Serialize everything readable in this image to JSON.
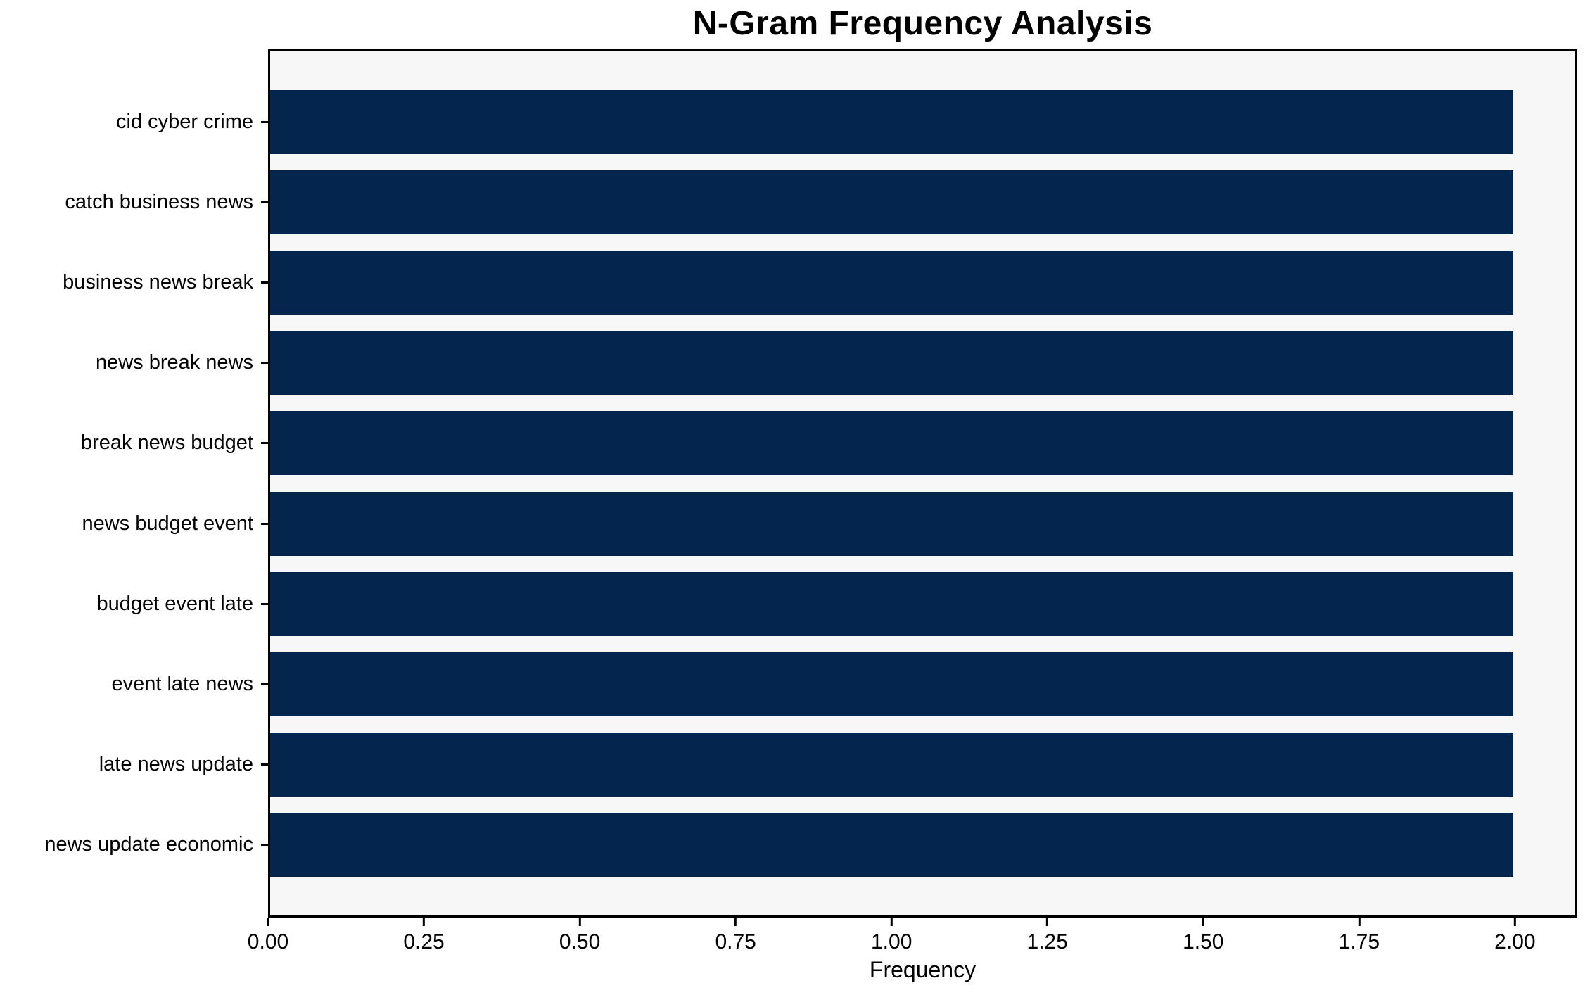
{
  "chart_data": {
    "type": "bar",
    "orientation": "horizontal",
    "title": "N-Gram Frequency Analysis",
    "xlabel": "Frequency",
    "ylabel": "",
    "categories": [
      "cid cyber crime",
      "catch business news",
      "business news break",
      "news break news",
      "break news budget",
      "news budget event",
      "budget event late",
      "event late news",
      "late news update",
      "news update economic"
    ],
    "values": [
      2,
      2,
      2,
      2,
      2,
      2,
      2,
      2,
      2,
      2
    ],
    "xlim": [
      0,
      2.1
    ],
    "xticks": [
      {
        "value": 0.0,
        "label": "0.00"
      },
      {
        "value": 0.25,
        "label": "0.25"
      },
      {
        "value": 0.5,
        "label": "0.50"
      },
      {
        "value": 0.75,
        "label": "0.75"
      },
      {
        "value": 1.0,
        "label": "1.00"
      },
      {
        "value": 1.25,
        "label": "1.25"
      },
      {
        "value": 1.5,
        "label": "1.50"
      },
      {
        "value": 1.75,
        "label": "1.75"
      },
      {
        "value": 2.0,
        "label": "2.00"
      }
    ],
    "grid": false,
    "legend": null,
    "colors": {
      "bar": "#03254e",
      "plot_background": "#f7f7f8",
      "figure_background": "#ffffff",
      "axis": "#000000",
      "text": "#000000"
    }
  }
}
